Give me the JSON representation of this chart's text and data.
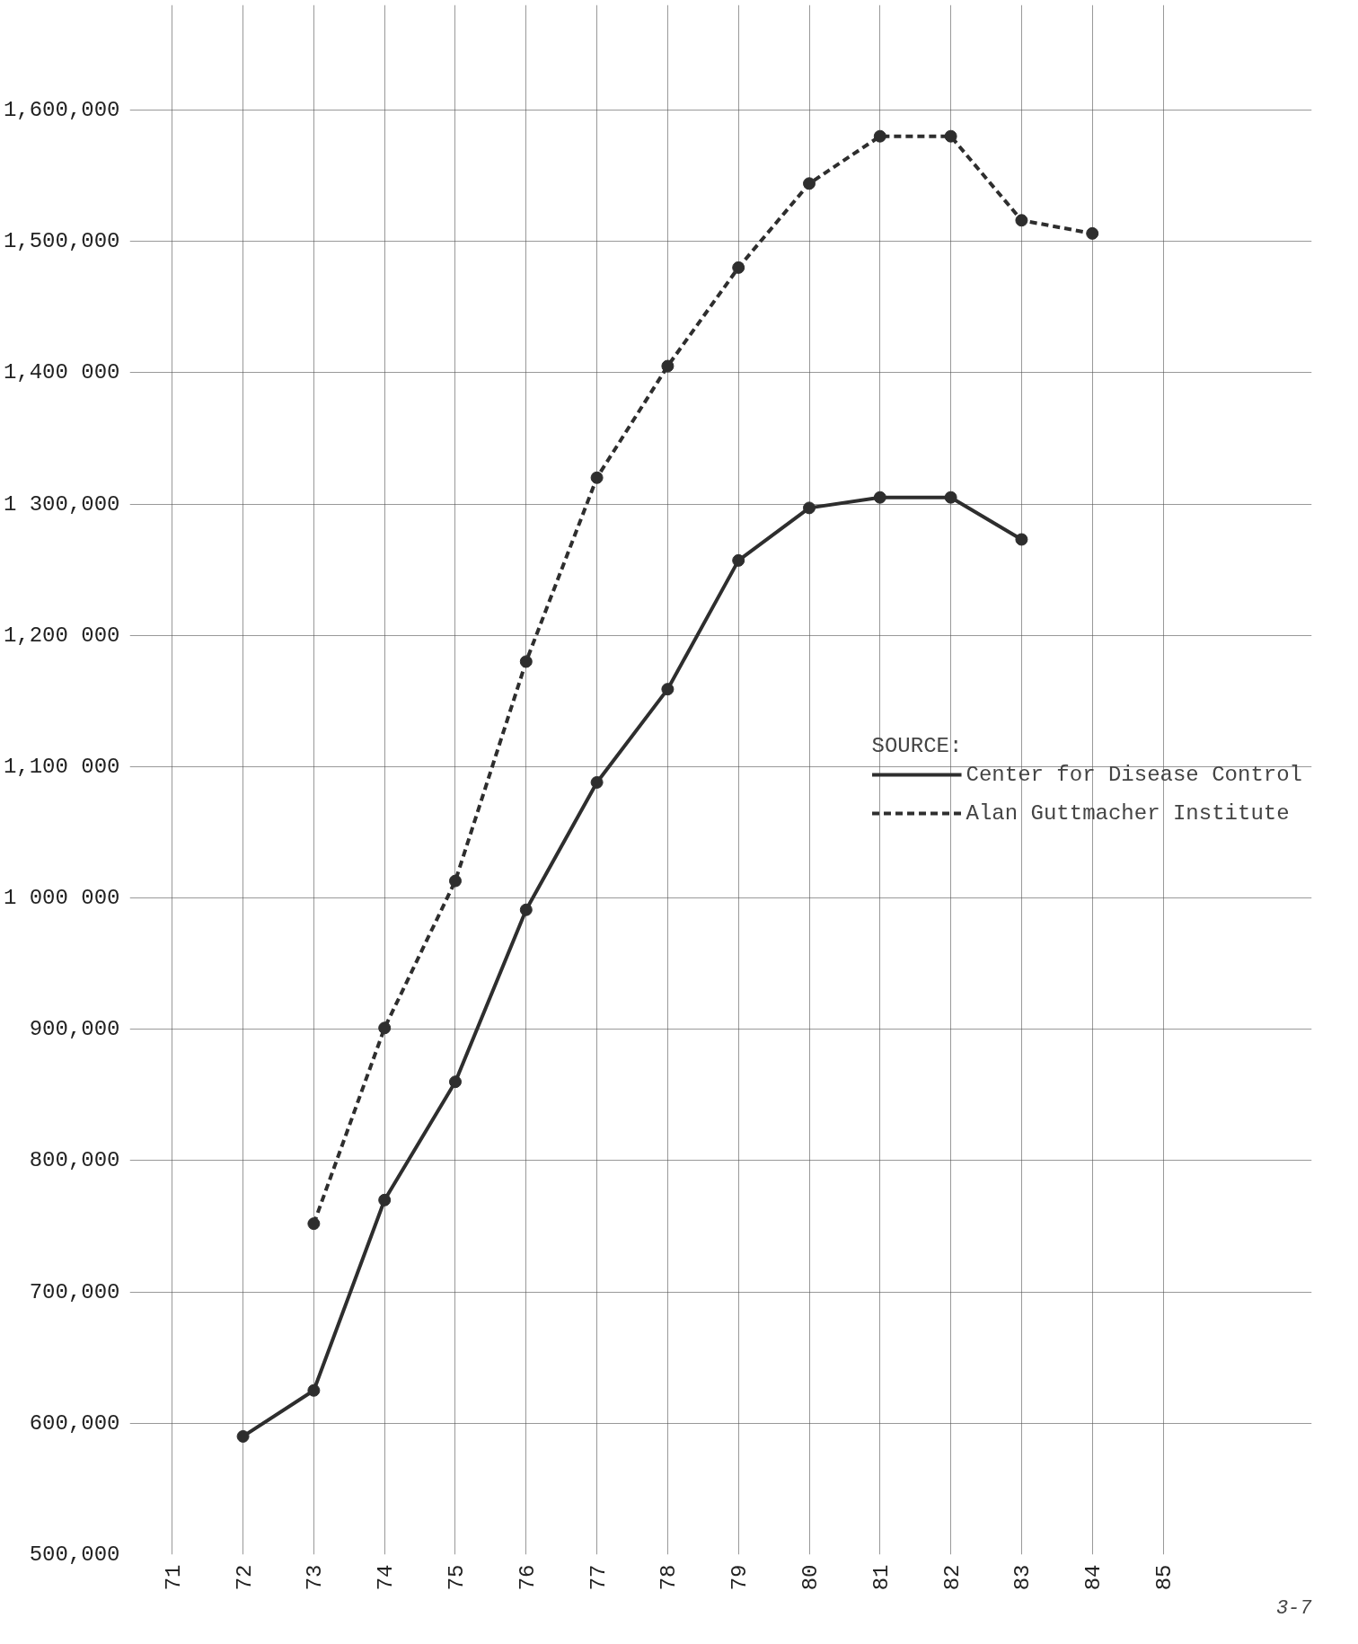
{
  "chart_data": {
    "type": "line",
    "x": [
      72,
      73,
      74,
      75,
      76,
      77,
      78,
      79,
      80,
      81,
      82,
      83,
      84
    ],
    "series": [
      {
        "name": "Center for Disease Control",
        "color": "#2e2e2e",
        "line_style": "solid",
        "values": [
          590000,
          625000,
          770000,
          860000,
          991000,
          1088000,
          1159000,
          1257000,
          1297000,
          1305000,
          1305000,
          1273000,
          null
        ]
      },
      {
        "name": "Alan Guttmacher Institute",
        "color": "#2e2e2e",
        "line_style": "dashed",
        "values": [
          null,
          752000,
          901000,
          1013000,
          1180000,
          1320000,
          1405000,
          1480000,
          1544000,
          1580000,
          1580000,
          1516000,
          1506000
        ]
      }
    ],
    "xlim": [
      70.4,
      87.1
    ],
    "xticks": [
      71,
      72,
      73,
      74,
      75,
      76,
      77,
      78,
      79,
      80,
      81,
      82,
      83,
      84,
      85
    ],
    "ylim": [
      500000,
      1680000
    ],
    "yticks": [
      {
        "value": 500000,
        "label": "500,000"
      },
      {
        "value": 600000,
        "label": "600,000"
      },
      {
        "value": 700000,
        "label": "700,000"
      },
      {
        "value": 800000,
        "label": "800,000"
      },
      {
        "value": 900000,
        "label": "900,000"
      },
      {
        "value": 1000000,
        "label": "1 000 000"
      },
      {
        "value": 1100000,
        "label": "1,100 000"
      },
      {
        "value": 1200000,
        "label": "1,200 000"
      },
      {
        "value": 1300000,
        "label": "1 300,000"
      },
      {
        "value": 1400000,
        "label": "1,400 000"
      },
      {
        "value": 1500000,
        "label": "1,500,000"
      },
      {
        "value": 1600000,
        "label": "1,600,000"
      }
    ],
    "legend_title": "SOURCE:",
    "legend": "right",
    "grid": true,
    "marker": "circle",
    "annotations": [
      "3-7"
    ]
  }
}
